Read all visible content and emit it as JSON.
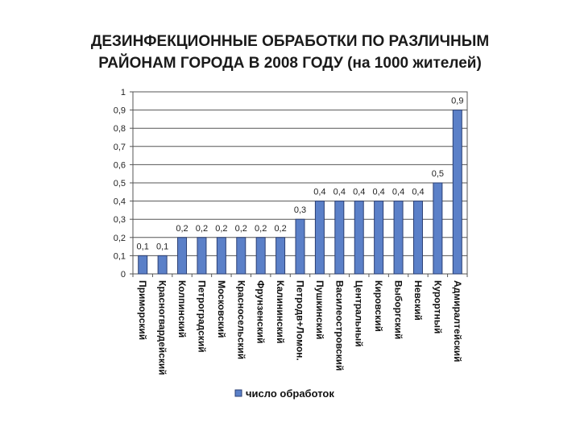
{
  "chart_data": {
    "type": "bar",
    "title_line1": "ДЕЗИНФЕКЦИОННЫЕ ОБРАБОТКИ ПО РАЗЛИЧНЫМ",
    "title_line2": "РАЙОНАМ ГОРОДА В 2008 ГОДУ (на 1000 жителей)",
    "categories": [
      "Приморский",
      "Красногвардейский",
      "Колпинский",
      "Петроградский",
      "Московский",
      "Красносельский",
      "Фрунзенский",
      "Калининский",
      "Петродв+Ломон.",
      "Пушкинский",
      "Василеостровский",
      "Центральный",
      "Кировский",
      "Выборгский",
      "Невский",
      "Курортный",
      "Адмиралтейский"
    ],
    "series": [
      {
        "name": "число обработок",
        "values": [
          0.1,
          0.1,
          0.2,
          0.2,
          0.2,
          0.2,
          0.2,
          0.2,
          0.3,
          0.4,
          0.4,
          0.4,
          0.4,
          0.4,
          0.4,
          0.5,
          0.9
        ],
        "labels": [
          "0,1",
          "0,1",
          "0,2",
          "0,2",
          "0,2",
          "0,2",
          "0,2",
          "0,2",
          "0,3",
          "0,4",
          "0,4",
          "0,4",
          "0,4",
          "0,4",
          "0,4",
          "0,5",
          "0,9"
        ]
      }
    ],
    "ylim": [
      0,
      1
    ],
    "yticks": [
      {
        "v": 0,
        "t": "0"
      },
      {
        "v": 0.1,
        "t": "0,1"
      },
      {
        "v": 0.2,
        "t": "0,2"
      },
      {
        "v": 0.3,
        "t": "0,3"
      },
      {
        "v": 0.4,
        "t": "0,4"
      },
      {
        "v": 0.5,
        "t": "0,5"
      },
      {
        "v": 0.6,
        "t": "0,6"
      },
      {
        "v": 0.7,
        "t": "0,7"
      },
      {
        "v": 0.8,
        "t": "0,8"
      },
      {
        "v": 0.9,
        "t": "0,9"
      },
      {
        "v": 1,
        "t": "1"
      }
    ],
    "grid": true,
    "legend_position": "bottom",
    "bar_color": "#5b80c8",
    "bar_edge_color": "#2b3f73"
  }
}
